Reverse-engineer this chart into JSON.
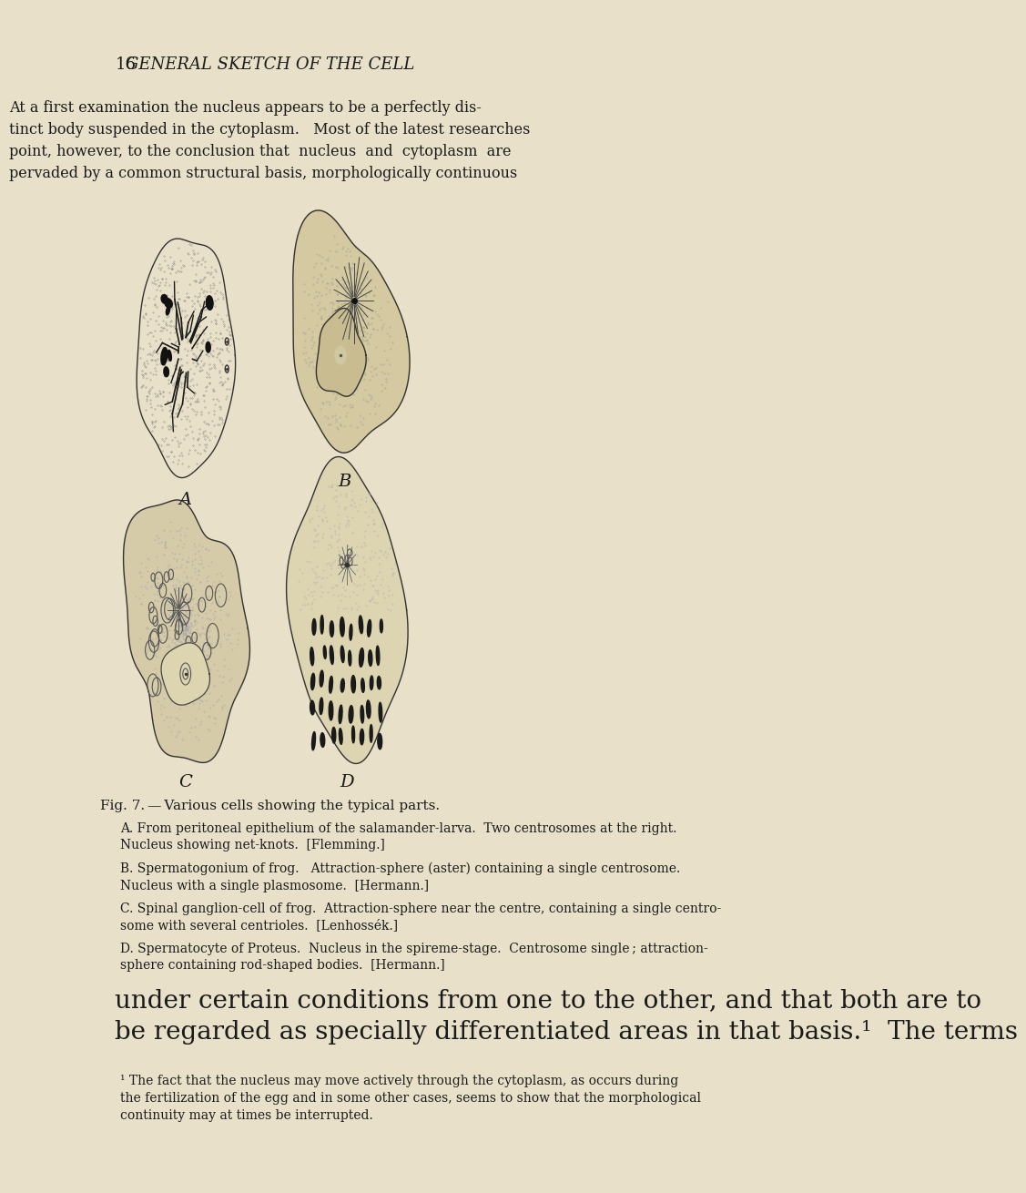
{
  "bg_color": "#e8e0c8",
  "text_color": "#1a1a1a",
  "page_number": "16",
  "header_title": "GENERAL SKETCH OF THE CELL",
  "body_text_top": "At a first examination the nucleus appears to be a perfectly dis-\ntinct body suspended in the cytoplasm.   Most of the latest researches\npoint, however, to the conclusion that  nucleus  and  cytoplasm  are\npervaded by a common structural basis, morphologically continuous",
  "fig_caption": "Fig. 7. — Various cells showing the typical parts.",
  "caption_A": "A. From peritoneal epithelium of the salamander-larva.  Two centrosomes at the right.\nNucleus showing net-knots.  [Flemming.]",
  "caption_B": "B. Spermatogonium of frog.   Attraction-sphere (aster) containing a single centrosome.\nNucleus with a single plasmosome.  [Hermann.]",
  "caption_C": "C. Spinal ganglion-cell of frog.  Attraction-sphere near the centre, containing a single centro-\nsome with several centrioles.  [Lenhossék.]",
  "caption_D": "D. Spermatocyte of Proteus.  Nucleus in the spireme-stage.  Centrosome single ; attraction-\nsphere containing rod-shaped bodies.  [Hermann.]",
  "body_text_bottom": "under certain conditions from one to the other, and that both are to\nbe regarded as specially differentiated areas in that basis.¹  The terms",
  "footnote": "¹ The fact that the nucleus may move actively through the cytoplasm, as occurs during\nthe fertilization of the egg and in some other cases, seems to show that the morphological\ncontinuity may at times be interrupted.",
  "label_A": "A",
  "label_B": "B",
  "label_C": "C",
  "label_D": "D"
}
